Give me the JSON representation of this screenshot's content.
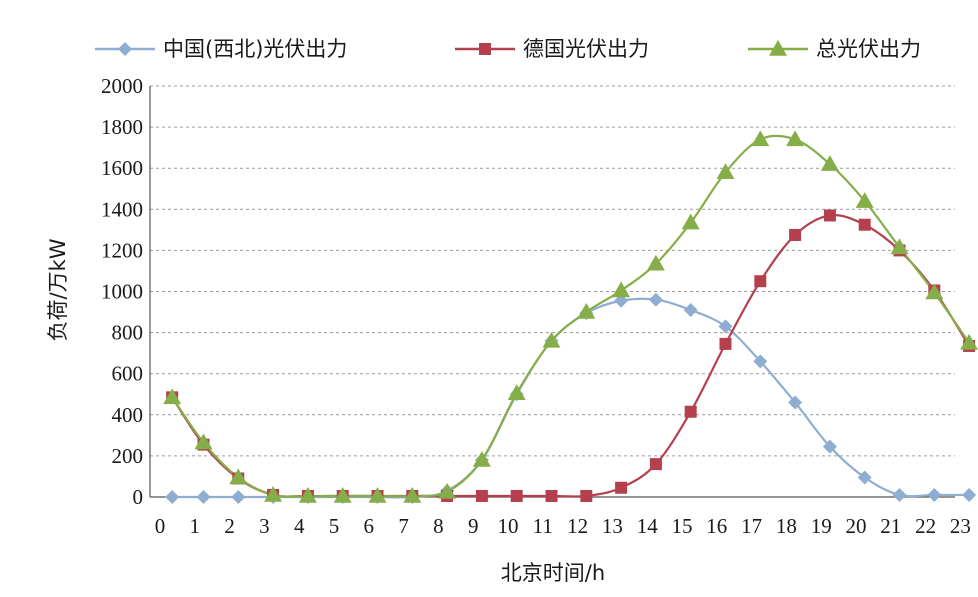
{
  "chart_data": {
    "type": "line",
    "xlabel": "北京时间/h",
    "ylabel": "负荷/万kW",
    "ylim": [
      0,
      2000
    ],
    "yticks": [
      "0",
      "200",
      "400",
      "600",
      "800",
      "1000",
      "1200",
      "1400",
      "1600",
      "1800",
      "2000"
    ],
    "xticks": [
      "0",
      "1",
      "2",
      "3",
      "4",
      "5",
      "6",
      "7",
      "8",
      "9",
      "10",
      "11",
      "12",
      "13",
      "14",
      "15",
      "16",
      "17",
      "18",
      "19",
      "20",
      "21",
      "22",
      "23"
    ],
    "grid": "horizontal dashed",
    "legend_position": "top",
    "series": [
      {
        "name": "中国(西北)光伏出力",
        "marker": "diamond",
        "color": "#8FADD0",
        "x": [
          0.35,
          1.25,
          2.25,
          3.25,
          4.25,
          5.25,
          6.25,
          7.25,
          8.25,
          9.25,
          10.25,
          11.25,
          12.25,
          13.25,
          14.25,
          15.25,
          16.25,
          17.25,
          18.25,
          19.25,
          20.25,
          21.25,
          22.25,
          23.25
        ],
        "values": [
          0,
          0,
          0,
          0,
          0,
          0,
          0,
          0,
          30,
          180,
          500,
          760,
          895,
          955,
          960,
          910,
          830,
          660,
          460,
          245,
          95,
          10,
          10,
          10
        ]
      },
      {
        "name": "德国光伏出力",
        "marker": "square",
        "color": "#B5404D",
        "x": [
          0.35,
          1.25,
          2.25,
          3.25,
          4.25,
          5.25,
          6.25,
          7.25,
          8.25,
          9.25,
          10.25,
          11.25,
          12.25,
          13.25,
          14.25,
          15.25,
          16.25,
          17.25,
          18.25,
          19.25,
          20.25,
          21.25,
          22.25,
          23.25
        ],
        "values": [
          485,
          255,
          90,
          10,
          5,
          5,
          5,
          5,
          5,
          5,
          5,
          5,
          5,
          45,
          160,
          415,
          745,
          1050,
          1275,
          1370,
          1325,
          1200,
          1005,
          735
        ]
      },
      {
        "name": "总光伏出力",
        "marker": "triangle",
        "color": "#86AE48",
        "x": [
          0.35,
          1.25,
          2.25,
          3.25,
          4.25,
          5.25,
          6.25,
          7.25,
          8.25,
          9.25,
          10.25,
          11.25,
          12.25,
          13.25,
          14.25,
          15.25,
          16.25,
          17.25,
          18.25,
          19.25,
          20.25,
          21.25,
          22.25,
          23.25
        ],
        "values": [
          485,
          265,
          95,
          10,
          5,
          5,
          5,
          5,
          25,
          180,
          505,
          760,
          900,
          1005,
          1135,
          1335,
          1580,
          1740,
          1740,
          1620,
          1440,
          1215,
          995,
          750
        ]
      }
    ]
  }
}
